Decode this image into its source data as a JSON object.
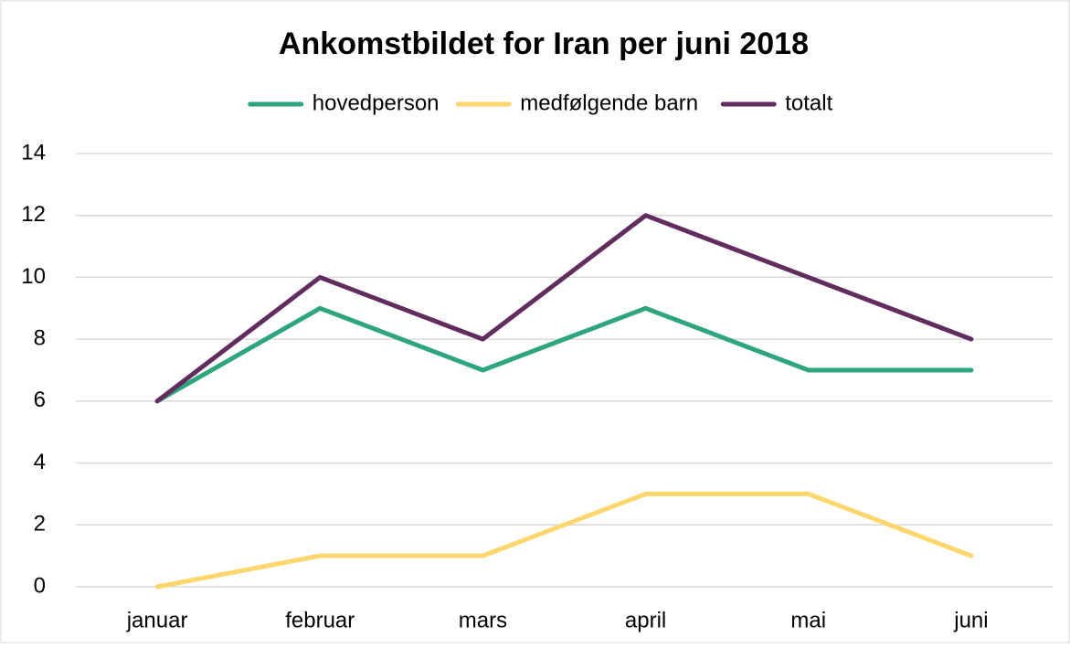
{
  "chart_data": {
    "type": "line",
    "title": "Ankomstbildet for Iran per juni 2018",
    "categories": [
      "januar",
      "februar",
      "mars",
      "april",
      "mai",
      "juni"
    ],
    "series": [
      {
        "name": "hovedperson",
        "color": "#2ea57a",
        "values": [
          6,
          9,
          7,
          9,
          7,
          7
        ]
      },
      {
        "name": "medfølgende barn",
        "color": "#fdd66e",
        "values": [
          0,
          1,
          1,
          3,
          3,
          1
        ]
      },
      {
        "name": "totalt",
        "color": "#612c5e",
        "values": [
          6,
          10,
          8,
          12,
          10,
          8
        ]
      }
    ],
    "ylim": [
      0,
      14
    ],
    "yticks": [
      0,
      2,
      4,
      6,
      8,
      10,
      12,
      14
    ],
    "grid": true,
    "legend": "top"
  }
}
